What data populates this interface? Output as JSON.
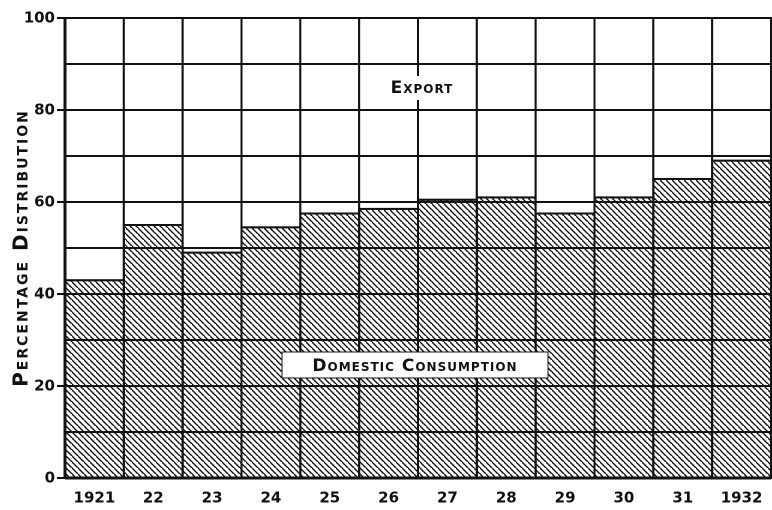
{
  "chart_data": {
    "type": "stacked_bar",
    "y_label": "Percentage Distribution",
    "categories": [
      "1921",
      "22",
      "23",
      "24",
      "25",
      "26",
      "27",
      "28",
      "29",
      "30",
      "31",
      "1932"
    ],
    "series": [
      {
        "name": "Domestic Consumption",
        "color": "#111111",
        "hatch": true,
        "values": [
          43,
          55,
          49,
          54.5,
          57.5,
          58.5,
          60.5,
          61,
          57.5,
          61,
          65,
          69
        ]
      },
      {
        "name": "Export",
        "color": "#ffffff",
        "hatch": false,
        "values": [
          57,
          45,
          51,
          45.5,
          42.5,
          41.5,
          39.5,
          39,
          42.5,
          39,
          35,
          31
        ]
      }
    ],
    "ylim": [
      0,
      100
    ],
    "yticks": [
      0,
      20,
      40,
      60,
      80,
      100
    ],
    "y_minor_ticks": [
      10,
      30,
      50,
      70,
      90
    ],
    "grid": true
  }
}
